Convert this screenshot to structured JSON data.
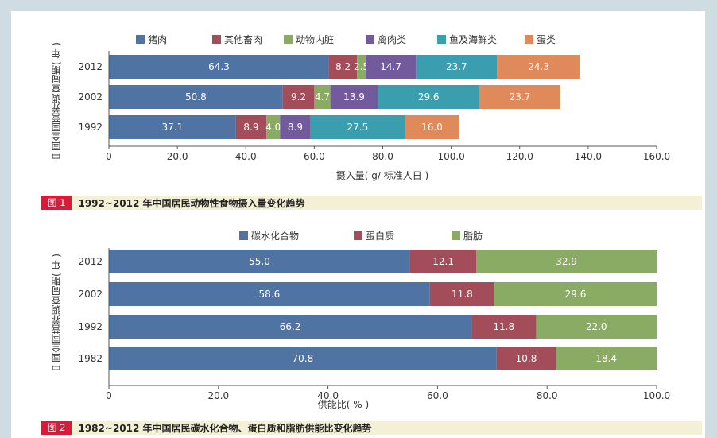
{
  "colors": {
    "pork": "#4f73a3",
    "other_livestock": "#a34d5a",
    "offal": "#8aab64",
    "poultry": "#725a9c",
    "seafood": "#3b9eae",
    "eggs": "#e08a5c",
    "carb": "#4f73a3",
    "protein": "#a34d5a",
    "fat": "#8aab64",
    "caption_bg": "#f3f0d6",
    "caption_label_bg": "#d51c3a"
  },
  "figure1": {
    "caption_label": "图 1",
    "caption": "1992~2012 年中国居民动物性食物摄入量变化趋势"
  },
  "figure2": {
    "caption_label": "图 2",
    "caption": "1982~2012 年中国居民碳水化合物、蛋白质和脂肪供能比变化趋势"
  },
  "chart_data": [
    {
      "type": "bar",
      "orientation": "horizontal",
      "stacked": true,
      "categories": [
        "2012",
        "2002",
        "1992"
      ],
      "series": [
        {
          "name": "猪肉",
          "values": [
            64.3,
            50.8,
            37.1
          ]
        },
        {
          "name": "其他畜肉",
          "values": [
            8.2,
            9.2,
            8.9
          ]
        },
        {
          "name": "动物内脏",
          "values": [
            2.5,
            4.7,
            4.0
          ]
        },
        {
          "name": "禽肉类",
          "values": [
            14.7,
            13.9,
            8.9
          ]
        },
        {
          "name": "鱼及海鲜类",
          "values": [
            23.7,
            29.6,
            27.5
          ]
        },
        {
          "name": "蛋类",
          "values": [
            24.3,
            23.7,
            16.0
          ]
        }
      ],
      "series_colors": [
        "#4f73a3",
        "#a34d5a",
        "#8aab64",
        "#725a9c",
        "#3b9eae",
        "#e08a5c"
      ],
      "xlabel": "摄入量( g/ 标准人日 )",
      "ylabel": "中国全国营养调查周期( 年 )",
      "xlim": [
        0,
        160
      ],
      "xticks": [
        "0",
        "20.0",
        "40.0",
        "60.0",
        "80.0",
        "100.0",
        "120.0",
        "140.0",
        "160.0"
      ],
      "legend": "top",
      "grid": false
    },
    {
      "type": "bar",
      "orientation": "horizontal",
      "stacked": true,
      "categories": [
        "2012",
        "2002",
        "1992",
        "1982"
      ],
      "series": [
        {
          "name": "碳水化合物",
          "values": [
            55.0,
            58.6,
            66.2,
            70.8
          ]
        },
        {
          "name": "蛋白质",
          "values": [
            12.1,
            11.8,
            11.8,
            10.8
          ]
        },
        {
          "name": "脂肪",
          "values": [
            32.9,
            29.6,
            22.0,
            18.4
          ]
        }
      ],
      "series_colors": [
        "#4f73a3",
        "#a34d5a",
        "#8aab64"
      ],
      "xlabel": "供能比( % )",
      "ylabel": "中国全国营养调查周期( 年 )",
      "xlim": [
        0,
        100
      ],
      "xticks": [
        "0",
        "20.0",
        "40.0",
        "60.0",
        "80.0",
        "100.0"
      ],
      "legend": "top",
      "grid": false
    }
  ]
}
